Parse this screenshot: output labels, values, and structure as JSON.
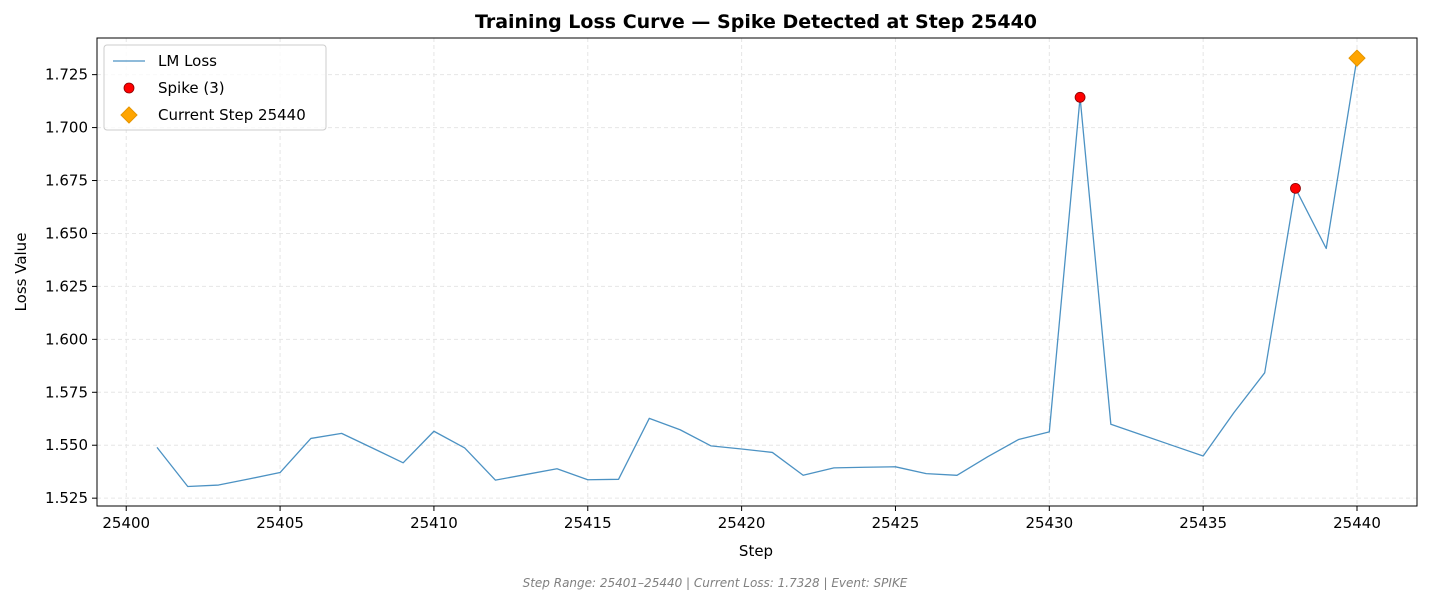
{
  "footer": "Step Range: 25401–25440 | Current Loss: 1.7328 | Event: SPIKE",
  "chart_data": {
    "type": "line",
    "title": "Training Loss Curve — Spike Detected at Step 25440",
    "xlabel": "Step",
    "ylabel": "Loss Value",
    "xlim": [
      25399.05,
      25441.95
    ],
    "ylim": [
      1.5213,
      1.7423
    ],
    "xticks": [
      25400,
      25405,
      25410,
      25415,
      25420,
      25425,
      25430,
      25435,
      25440
    ],
    "xtick_labels": [
      "25400",
      "25405",
      "25410",
      "25415",
      "25420",
      "25425",
      "25430",
      "25435",
      "25440"
    ],
    "yticks": [
      1.525,
      1.55,
      1.575,
      1.6,
      1.625,
      1.65,
      1.675,
      1.7,
      1.725
    ],
    "ytick_labels": [
      "1.525",
      "1.550",
      "1.575",
      "1.600",
      "1.625",
      "1.650",
      "1.675",
      "1.700",
      "1.725"
    ],
    "grid": true,
    "legend": {
      "position": "top-left",
      "entries": [
        "LM Loss",
        "Spike (3)",
        "Current Step 25440"
      ]
    },
    "colors": {
      "line": "#1f77b4",
      "spike": "#ff0000",
      "current": "#ffa500",
      "grid": "#e6e6e6",
      "footer": "#808080"
    },
    "series": [
      {
        "name": "LM Loss",
        "kind": "line",
        "x": [
          25401,
          25402,
          25403,
          25404,
          25405,
          25406,
          25407,
          25408,
          25409,
          25410,
          25411,
          25412,
          25413,
          25414,
          25415,
          25416,
          25417,
          25418,
          25419,
          25420,
          25421,
          25422,
          25423,
          25424,
          25425,
          25426,
          25427,
          25428,
          25429,
          25430,
          25431,
          25432,
          25433,
          25434,
          25435,
          25436,
          25437,
          25438,
          25439,
          25440
        ],
        "y": [
          1.549,
          1.5305,
          1.5312,
          1.5341,
          1.5371,
          1.5532,
          1.5556,
          1.5487,
          1.5417,
          1.5566,
          1.5487,
          1.5335,
          1.5362,
          1.5389,
          1.5337,
          1.5339,
          1.5627,
          1.5573,
          1.5497,
          1.5482,
          1.5466,
          1.5358,
          1.5393,
          1.5396,
          1.5398,
          1.5366,
          1.5358,
          1.5446,
          1.5527,
          1.5563,
          1.7143,
          1.5599,
          1.5549,
          1.5499,
          1.5449,
          1.5654,
          1.5842,
          1.6713,
          1.6429,
          1.7328
        ]
      },
      {
        "name": "Spike (3)",
        "kind": "scatter",
        "x": [
          25431,
          25438
        ],
        "y": [
          1.7143,
          1.6713
        ]
      },
      {
        "name": "Current Step 25440",
        "kind": "marker",
        "x": [
          25440
        ],
        "y": [
          1.7328
        ]
      }
    ]
  }
}
